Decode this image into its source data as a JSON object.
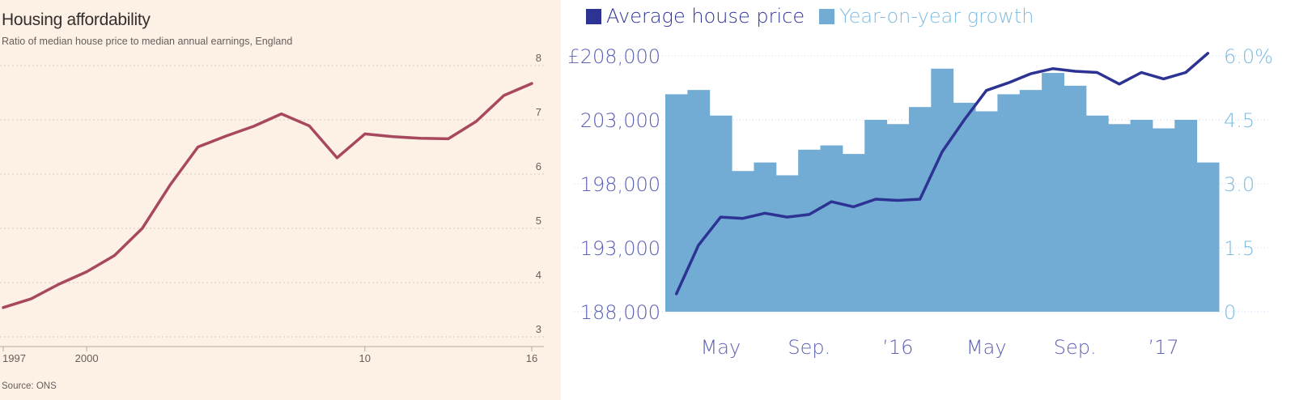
{
  "chart_data": [
    {
      "type": "line",
      "title": "Housing affordability",
      "subtitle": "Ratio of median house price to median annual earnings, England",
      "source": "Source: ONS",
      "x_ticks": [
        "1997",
        "2000",
        "10",
        "16"
      ],
      "x_tick_values": [
        1997,
        2000,
        2010,
        2016
      ],
      "y_ticks": [
        "3",
        "4",
        "5",
        "6",
        "7",
        "8"
      ],
      "ylim": [
        3,
        8
      ],
      "xlim": [
        1997,
        2016
      ],
      "grid": true,
      "color": "#a8485e",
      "x": [
        1997,
        1998,
        1999,
        2000,
        2001,
        2002,
        2003,
        2004,
        2005,
        2006,
        2007,
        2008,
        2009,
        2010,
        2011,
        2012,
        2013,
        2014,
        2015,
        2016
      ],
      "values": [
        3.54,
        3.7,
        3.97,
        4.2,
        4.5,
        5.0,
        5.8,
        6.5,
        6.7,
        6.88,
        7.11,
        6.89,
        6.3,
        6.74,
        6.69,
        6.66,
        6.65,
        6.97,
        7.45,
        7.67
      ]
    },
    {
      "type": "bar+line",
      "legend": [
        "Average house price",
        "Year-on-year growth"
      ],
      "legend_colors": [
        "#2d3393",
        "#72acd4"
      ],
      "x_ticks": [
        "May",
        "Sep.",
        "’16",
        "May",
        "Sep.",
        "’17"
      ],
      "x_tick_index": [
        2,
        6,
        10,
        14,
        18,
        22
      ],
      "left_axis": {
        "ticks": [
          "£208,000",
          "203,000",
          "198,000",
          "193,000",
          "188,000"
        ],
        "tick_values": [
          208000,
          203000,
          198000,
          193000,
          188000
        ],
        "range": [
          188000,
          208000
        ],
        "color": "#5a5fb3"
      },
      "right_axis": {
        "ticks": [
          "6.0%",
          "4.5",
          "3.0",
          "1.5",
          "0"
        ],
        "tick_values": [
          6.0,
          4.5,
          3.0,
          1.5,
          0
        ],
        "range": [
          0,
          6.0
        ],
        "color": "#7fbbe0"
      },
      "grid": true,
      "series": [
        {
          "name": "Average house price",
          "color": "#2d3393",
          "values": [
            189400,
            193200,
            195400,
            195300,
            195700,
            195400,
            195600,
            196600,
            196200,
            196800,
            196700,
            196800,
            200500,
            203000,
            205300,
            205900,
            206600,
            207000,
            206800,
            206700,
            205800,
            206700,
            206200,
            206700,
            208200
          ]
        },
        {
          "name": "Year-on-year growth",
          "color": "#72acd4",
          "values": [
            5.1,
            5.2,
            4.6,
            3.3,
            3.5,
            3.2,
            3.8,
            3.9,
            3.7,
            4.5,
            4.4,
            4.8,
            5.7,
            4.9,
            4.7,
            5.1,
            5.2,
            5.6,
            5.3,
            4.6,
            4.4,
            4.5,
            4.3,
            4.5,
            3.5
          ]
        }
      ]
    }
  ]
}
